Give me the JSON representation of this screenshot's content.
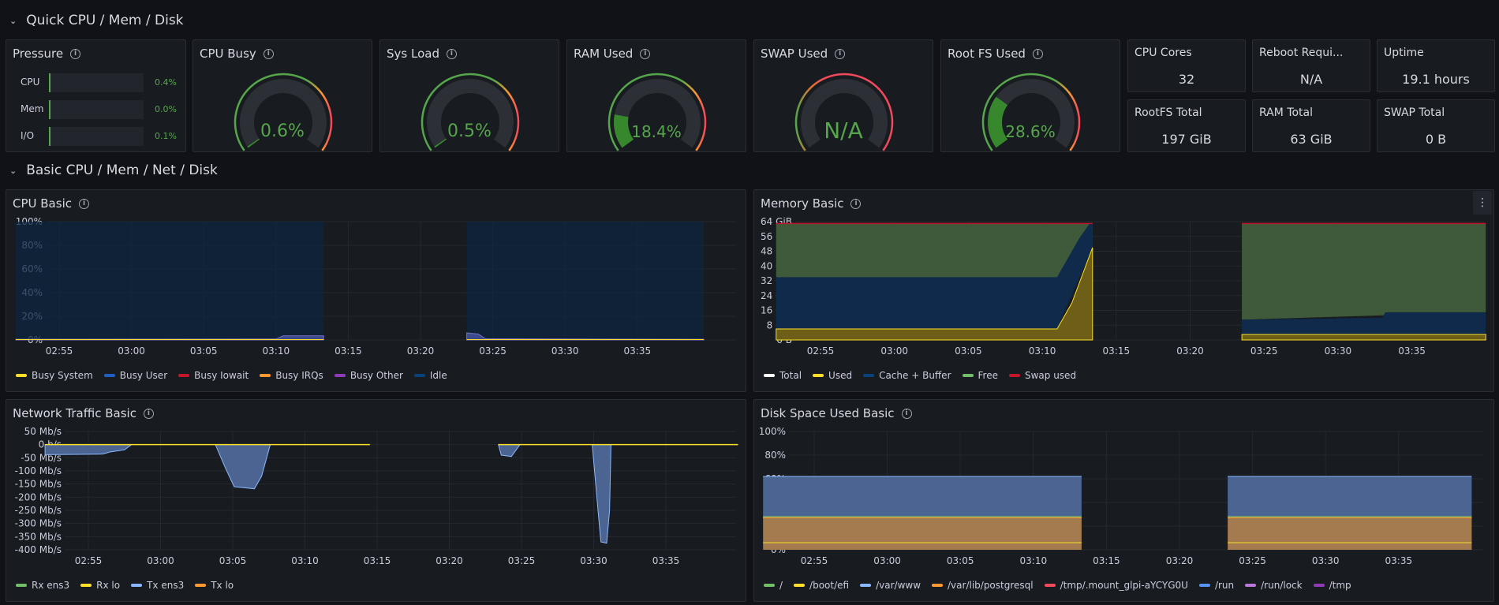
{
  "rows": {
    "quick": "Quick CPU / Mem / Disk",
    "basic": "Basic CPU / Mem / Net / Disk"
  },
  "pressure": {
    "title": "Pressure",
    "items": [
      {
        "label": "CPU",
        "value": "0.4%",
        "fraction": 0.004
      },
      {
        "label": "Mem",
        "value": "0.0%",
        "fraction": 0.0
      },
      {
        "label": "I/O",
        "value": "0.1%",
        "fraction": 0.001
      }
    ]
  },
  "gauges": [
    {
      "title": "CPU Busy",
      "value": "0.6%",
      "fraction": 0.006,
      "color_scheme": "green-to-red"
    },
    {
      "title": "Sys Load",
      "value": "0.5%",
      "fraction": 0.005,
      "color_scheme": "green-to-red"
    },
    {
      "title": "RAM Used",
      "value": "18.4%",
      "fraction": 0.184,
      "color_scheme": "green-to-red"
    },
    {
      "title": "SWAP Used",
      "value": "N/A",
      "fraction": 0.0,
      "color_scheme": "red"
    },
    {
      "title": "Root FS Used",
      "value": "28.6%",
      "fraction": 0.286,
      "color_scheme": "green-to-red"
    }
  ],
  "stats": [
    {
      "title": "CPU Cores",
      "value": "32"
    },
    {
      "title": "Reboot Requi...",
      "value": "N/A"
    },
    {
      "title": "Uptime",
      "value": "19.1 hours"
    },
    {
      "title": "RootFS Total",
      "value": "197 GiB"
    },
    {
      "title": "RAM Total",
      "value": "63 GiB"
    },
    {
      "title": "SWAP Total",
      "value": "0 B"
    }
  ],
  "colors": {
    "green": "#73bf69",
    "yellow": "#fade2a",
    "blue": "#5794f2",
    "light_blue": "#8ab8ff",
    "dark_blue": "#1f60c4",
    "red": "#f2495c",
    "dark_red": "#c4162a",
    "orange": "#ff9830",
    "purple": "#b877d9",
    "dark_purple": "#8f3bb8",
    "navy": "#0a437c",
    "white": "#ffffff"
  },
  "x_ticks": [
    "02:55",
    "03:00",
    "03:05",
    "03:10",
    "03:15",
    "03:20",
    "03:25",
    "03:30",
    "03:35"
  ],
  "charts": {
    "cpu": {
      "title": "CPU Basic",
      "y_ticks": [
        "100%",
        "80%",
        "60%",
        "40%",
        "20%",
        "0%"
      ],
      "legend": [
        {
          "label": "Busy System",
          "color": "#fade2a"
        },
        {
          "label": "Busy User",
          "color": "#1f60c4"
        },
        {
          "label": "Busy Iowait",
          "color": "#c4162a"
        },
        {
          "label": "Busy IRQs",
          "color": "#ff9830"
        },
        {
          "label": "Busy Other",
          "color": "#8f3bb8"
        },
        {
          "label": "Idle",
          "color": "#0a437c"
        }
      ]
    },
    "memory": {
      "title": "Memory Basic",
      "y_ticks": [
        "64 GiB",
        "56 GiB",
        "48 GiB",
        "40 GiB",
        "32 GiB",
        "24 GiB",
        "16 GiB",
        "8 GiB",
        "0 B"
      ],
      "legend": [
        {
          "label": "Total",
          "color": "#ffffff"
        },
        {
          "label": "Used",
          "color": "#fade2a"
        },
        {
          "label": "Cache + Buffer",
          "color": "#0a437c"
        },
        {
          "label": "Free",
          "color": "#73bf69"
        },
        {
          "label": "Swap used",
          "color": "#c4162a"
        }
      ]
    },
    "network": {
      "title": "Network Traffic Basic",
      "y_ticks": [
        "50 Mb/s",
        "0 b/s",
        "-50 Mb/s",
        "-100 Mb/s",
        "-150 Mb/s",
        "-200 Mb/s",
        "-250 Mb/s",
        "-300 Mb/s",
        "-350 Mb/s",
        "-400 Mb/s"
      ],
      "legend": [
        {
          "label": "Rx ens3",
          "color": "#73bf69"
        },
        {
          "label": "Rx lo",
          "color": "#fade2a"
        },
        {
          "label": "Tx ens3",
          "color": "#8ab8ff"
        },
        {
          "label": "Tx lo",
          "color": "#ff9830"
        }
      ]
    },
    "disk": {
      "title": "Disk Space Used Basic",
      "y_ticks": [
        "100%",
        "80%",
        "60%",
        "40%",
        "20%",
        "0%"
      ],
      "legend": [
        {
          "label": "/",
          "color": "#73bf69"
        },
        {
          "label": "/boot/efi",
          "color": "#fade2a"
        },
        {
          "label": "/var/www",
          "color": "#8ab8ff"
        },
        {
          "label": "/var/lib/postgresql",
          "color": "#ff9830"
        },
        {
          "label": "/tmp/.mount_glpi-aYCYG0U",
          "color": "#f2495c"
        },
        {
          "label": "/run",
          "color": "#5794f2"
        },
        {
          "label": "/run/lock",
          "color": "#b877d9"
        },
        {
          "label": "/tmp",
          "color": "#8f3bb8"
        }
      ]
    }
  },
  "chart_data": [
    {
      "type": "area",
      "title": "CPU Basic",
      "x": [
        "02:52",
        "03:13",
        "03:23",
        "03:39"
      ],
      "series": [
        {
          "name": "Busy System",
          "values": [
            0.2,
            0.2,
            0.2,
            0.2
          ]
        },
        {
          "name": "Busy User",
          "values": [
            0.4,
            3.0,
            5.0,
            0.4
          ]
        },
        {
          "name": "Idle",
          "values": [
            99.4,
            96.8,
            94.8,
            99.4
          ]
        }
      ],
      "ylim": [
        0,
        100
      ]
    },
    {
      "type": "area",
      "title": "Memory Basic",
      "x": [
        "02:52",
        "03:11",
        "03:13",
        "03:23",
        "03:39"
      ],
      "series": [
        {
          "name": "Total",
          "values": [
            63,
            63,
            63,
            63,
            63
          ]
        },
        {
          "name": "Used",
          "values": [
            6,
            6,
            50,
            3,
            3
          ]
        },
        {
          "name": "Cache + Buffer",
          "values": [
            29,
            29,
            13,
            11,
            12
          ]
        },
        {
          "name": "Free",
          "values": [
            28,
            28,
            0,
            49,
            48
          ]
        }
      ],
      "ylim": [
        0,
        64
      ]
    },
    {
      "type": "area",
      "title": "Network Traffic Basic",
      "x": [
        "02:52",
        "02:56",
        "03:05",
        "03:07",
        "03:23",
        "03:30"
      ],
      "series": [
        {
          "name": "Tx ens3",
          "values": [
            -40,
            -35,
            -170,
            -165,
            -45,
            -375
          ]
        },
        {
          "name": "Rx lo",
          "values": [
            0,
            0,
            0,
            0,
            0,
            0
          ]
        }
      ],
      "ylim": [
        -400,
        50
      ]
    },
    {
      "type": "area",
      "title": "Disk Space Used Basic",
      "x": [
        "02:52",
        "03:13",
        "03:23",
        "03:39"
      ],
      "series": [
        {
          "name": "/",
          "values": [
            28,
            28,
            28,
            28
          ]
        },
        {
          "name": "/var/www",
          "values": [
            62,
            62,
            62,
            62
          ]
        },
        {
          "name": "/var/lib/postgresql",
          "values": [
            27,
            27,
            27,
            27
          ]
        },
        {
          "name": "/boot/efi",
          "values": [
            6,
            6,
            6,
            6
          ]
        }
      ],
      "ylim": [
        0,
        100
      ]
    }
  ]
}
